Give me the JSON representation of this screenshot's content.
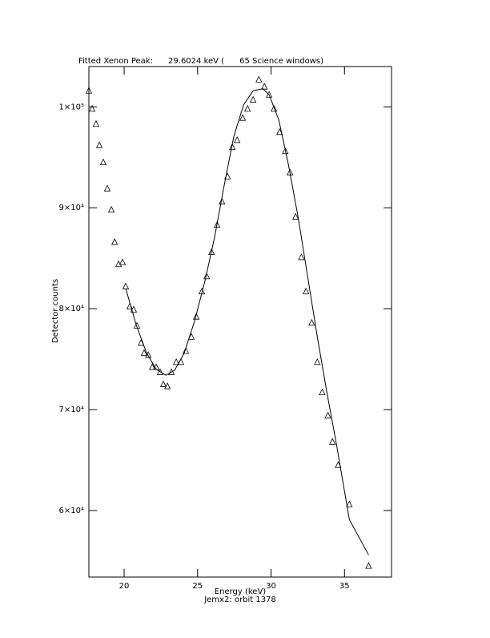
{
  "chart_data": {
    "type": "scatter",
    "title": "Fitted Xenon Peak:      29.6024 keV (      65 Science windows)",
    "x_label": "Energy (keV)",
    "subtitle": "Jemx2: orbit 1378",
    "y_label": "Detector counts",
    "xlim": [
      17.6,
      38.2
    ],
    "ylim": [
      53400,
      104000
    ],
    "xticks": [
      20,
      25,
      30,
      35
    ],
    "yticks": [
      {
        "value": 60000,
        "label": "6×10⁴"
      },
      {
        "value": 70000,
        "label": "7×10⁴"
      },
      {
        "value": 80000,
        "label": "8×10⁴"
      },
      {
        "value": 90000,
        "label": "9×10⁴"
      },
      {
        "value": 100000,
        "label": "1×10⁵"
      }
    ],
    "series": [
      {
        "style": "markers",
        "color": "#000000",
        "x": [
          17.6,
          17.82,
          18.09,
          18.31,
          18.58,
          18.85,
          19.13,
          19.35,
          19.62,
          19.89,
          20.11,
          20.38,
          20.65,
          20.87,
          21.15,
          21.36,
          21.64,
          21.91,
          22.18,
          22.45,
          22.67,
          22.95,
          23.22,
          23.55,
          23.87,
          24.2,
          24.58,
          24.91,
          25.29,
          25.62,
          25.95,
          26.33,
          26.66,
          27.04,
          27.36,
          27.69,
          28.07,
          28.4,
          28.78,
          29.17,
          29.55,
          29.87,
          30.2,
          30.58,
          30.97,
          31.29,
          31.67,
          32.06,
          32.38,
          32.77,
          33.15,
          33.48,
          33.87,
          34.18,
          34.57,
          35.33,
          36.64
        ],
        "y": [
          101600,
          99800,
          98300,
          96200,
          94500,
          91900,
          89800,
          86600,
          84400,
          84600,
          82200,
          80200,
          79900,
          78300,
          76600,
          75600,
          75400,
          74200,
          74200,
          73700,
          72500,
          72300,
          73700,
          74700,
          74700,
          75800,
          77200,
          79200,
          81700,
          83200,
          85600,
          88300,
          90600,
          93100,
          96000,
          96700,
          98900,
          99800,
          100700,
          102700,
          102000,
          101200,
          99800,
          97500,
          95600,
          93500,
          89100,
          85100,
          81700,
          78600,
          74700,
          71700,
          69400,
          66800,
          64500,
          60600,
          54500
        ]
      },
      {
        "style": "line",
        "color": "#000000",
        "x": [
          20.11,
          20.82,
          21.53,
          22.18,
          22.84,
          23.44,
          24.09,
          24.8,
          25.51,
          26.16,
          26.82,
          27.47,
          28.13,
          28.78,
          29.44,
          29.87,
          30.53,
          31.18,
          31.84,
          32.49,
          33.15,
          33.8,
          34.46,
          35.33,
          36.64
        ],
        "y": [
          82000,
          78400,
          75600,
          74000,
          73400,
          73900,
          75600,
          78800,
          82800,
          87100,
          92300,
          97100,
          100200,
          101600,
          101800,
          101200,
          98700,
          94300,
          89100,
          83200,
          77200,
          71700,
          66500,
          59100,
          55600
        ]
      }
    ]
  }
}
